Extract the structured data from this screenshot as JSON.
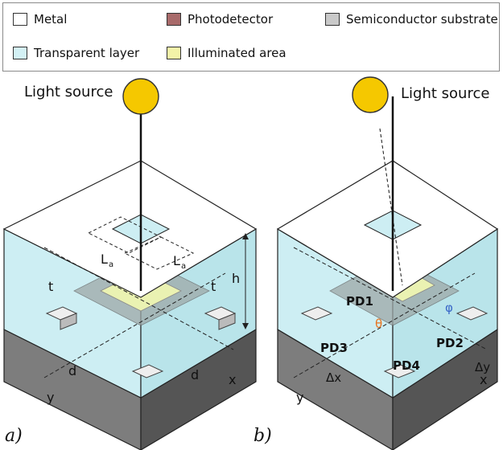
{
  "legend": {
    "items": [
      {
        "label": "Metal",
        "color": "#ffffff"
      },
      {
        "label": "Photodetector",
        "color": "#a86a6a"
      },
      {
        "label": "Semiconductor substrate",
        "color": "#c9c9c9"
      },
      {
        "label": "Transparent layer",
        "color": "#d3f1f5"
      },
      {
        "label": "Illuminated area",
        "color": "#f3f3a8"
      }
    ]
  },
  "panel_a": {
    "label": "a)",
    "light_source": "Light source",
    "dim_La_left": "L",
    "dim_La_right": "L",
    "dim_La_sub": "a",
    "dim_h": "h",
    "dim_t_left": "t",
    "dim_t_right": "t",
    "dim_d_left": "d",
    "dim_d_right": "d",
    "axis_x": "x",
    "axis_y": "y"
  },
  "panel_b": {
    "label": "b)",
    "light_source": "Light source",
    "pd1": "PD1",
    "pd2": "PD2",
    "pd3": "PD3",
    "pd4": "PD4",
    "theta": "θ",
    "phi": "φ",
    "dx": "Δx",
    "dy": "Δy",
    "axis_x": "x",
    "axis_y": "y"
  },
  "colors": {
    "metal": "#ffffff",
    "transparent": "#cfeff4",
    "substrate": "#8c8c8c",
    "photodetector": "#9a9a9a",
    "illuminated": "#eef3b0",
    "light_source": "#f5c800",
    "theta_color": "#e8731e",
    "phi_color": "#3a68c8"
  }
}
